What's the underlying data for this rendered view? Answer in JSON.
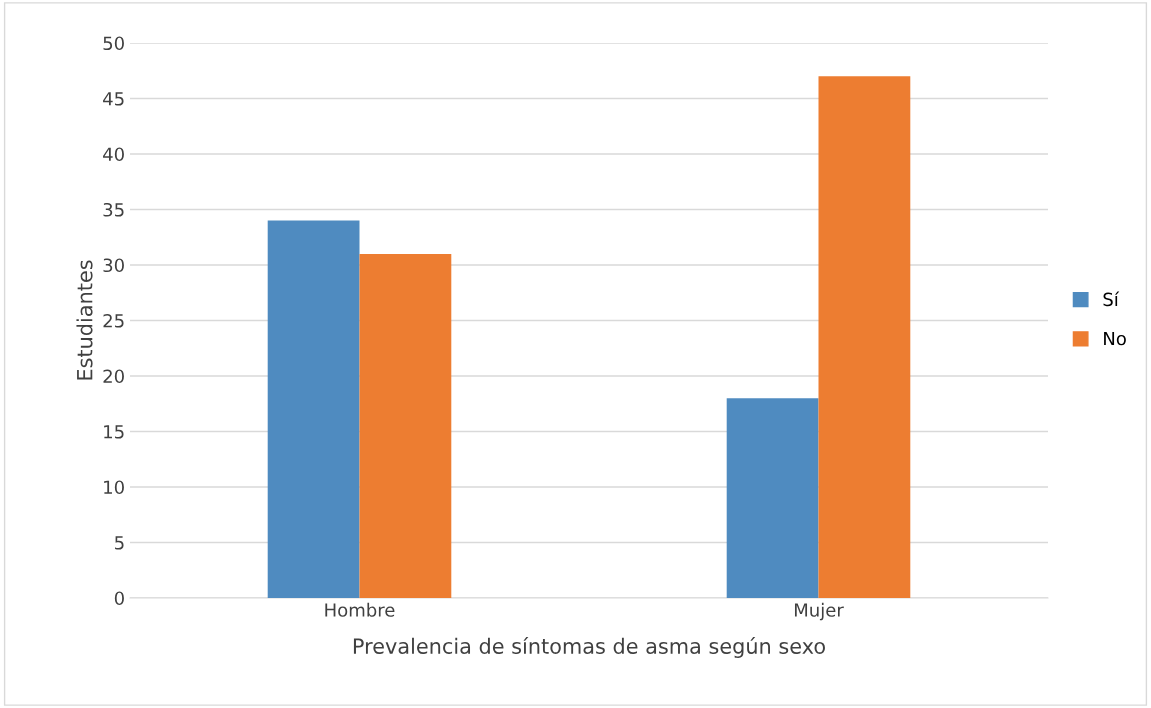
{
  "chart_data": {
    "type": "bar",
    "xlabel": "Prevalencia de síntomas de asma según sexo",
    "ylabel": "Estudiantes",
    "categories": [
      "Hombre",
      "Mujer"
    ],
    "series": [
      {
        "name": "Sí",
        "color": "#4f8bc0",
        "values": [
          34,
          18
        ]
      },
      {
        "name": "No",
        "color": "#ed7d31",
        "values": [
          31,
          47
        ]
      }
    ],
    "ylim": [
      0,
      50
    ],
    "yticks": [
      0,
      5,
      10,
      15,
      20,
      25,
      30,
      35,
      40,
      45,
      50
    ],
    "grid": "y",
    "legend": "right"
  }
}
